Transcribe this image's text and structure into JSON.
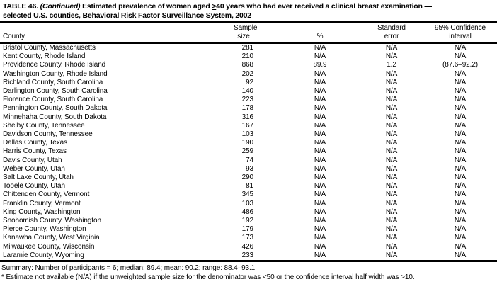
{
  "title": {
    "line1_pre": "TABLE 46. ",
    "line1_continued": "(Continued)",
    "line1_mid": " Estimated prevalence of women aged ",
    "geq_symbol": ">",
    "line1_post": "40 years who had ever received a clinical breast examination —",
    "line2": "selected U.S. counties, Behavioral Risk Factor Surveillance System, 2002"
  },
  "table": {
    "columns": [
      {
        "id": "county",
        "line1": "",
        "line2": "County"
      },
      {
        "id": "sample_size",
        "line1": "Sample",
        "line2": "size"
      },
      {
        "id": "percent",
        "line1": "",
        "line2": "%"
      },
      {
        "id": "standard_error",
        "line1": "Standard",
        "line2": "error"
      },
      {
        "id": "confidence_interval",
        "line1": "95% Confidence",
        "line2": "interval"
      }
    ],
    "rows": [
      [
        "Bristol County, Massachusetts",
        "281",
        "N/A",
        "N/A",
        "N/A"
      ],
      [
        "Kent County, Rhode Island",
        "210",
        "N/A",
        "N/A",
        "N/A"
      ],
      [
        "Providence County, Rhode Island",
        "868",
        "89.9",
        "1.2",
        "(87.6–92.2)"
      ],
      [
        "Washington County, Rhode Island",
        "202",
        "N/A",
        "N/A",
        "N/A"
      ],
      [
        "Richland County, South Carolina",
        "92",
        "N/A",
        "N/A",
        "N/A"
      ],
      [
        "Darlington County, South Carolina",
        "140",
        "N/A",
        "N/A",
        "N/A"
      ],
      [
        "Florence County, South Carolina",
        "223",
        "N/A",
        "N/A",
        "N/A"
      ],
      [
        "Pennington County, South Dakota",
        "178",
        "N/A",
        "N/A",
        "N/A"
      ],
      [
        "Minnehaha County, South Dakota",
        "316",
        "N/A",
        "N/A",
        "N/A"
      ],
      [
        "Shelby County, Tennessee",
        "167",
        "N/A",
        "N/A",
        "N/A"
      ],
      [
        "Davidson County, Tennessee",
        "103",
        "N/A",
        "N/A",
        "N/A"
      ],
      [
        "Dallas County, Texas",
        "190",
        "N/A",
        "N/A",
        "N/A"
      ],
      [
        "Harris County, Texas",
        "259",
        "N/A",
        "N/A",
        "N/A"
      ],
      [
        "Davis County, Utah",
        "74",
        "N/A",
        "N/A",
        "N/A"
      ],
      [
        "Weber County, Utah",
        "93",
        "N/A",
        "N/A",
        "N/A"
      ],
      [
        "Salt Lake County, Utah",
        "290",
        "N/A",
        "N/A",
        "N/A"
      ],
      [
        "Tooele County, Utah",
        "81",
        "N/A",
        "N/A",
        "N/A"
      ],
      [
        "Chittenden County, Vermont",
        "345",
        "N/A",
        "N/A",
        "N/A"
      ],
      [
        "Franklin County, Vermont",
        "103",
        "N/A",
        "N/A",
        "N/A"
      ],
      [
        "King County, Washington",
        "486",
        "N/A",
        "N/A",
        "N/A"
      ],
      [
        "Snohomish County, Washington",
        "192",
        "N/A",
        "N/A",
        "N/A"
      ],
      [
        "Pierce County, Washington",
        "179",
        "N/A",
        "N/A",
        "N/A"
      ],
      [
        "Kanawha County, West Virginia",
        "173",
        "N/A",
        "N/A",
        "N/A"
      ],
      [
        "Milwaukee County, Wisconsin",
        "426",
        "N/A",
        "N/A",
        "N/A"
      ],
      [
        "Laramie County, Wyoming",
        "233",
        "N/A",
        "N/A",
        "N/A"
      ]
    ]
  },
  "summary": "Summary: Number of participants = 6; median: 89.4; mean: 90.2; range: 88.4–93.1.",
  "footnote": "* Estimate not available (N/A) if the unweighted sample size for the denominator was <50 or the confidence interval half width was >10.",
  "colors": {
    "text": "#000000",
    "background": "#ffffff",
    "rule": "#000000"
  }
}
